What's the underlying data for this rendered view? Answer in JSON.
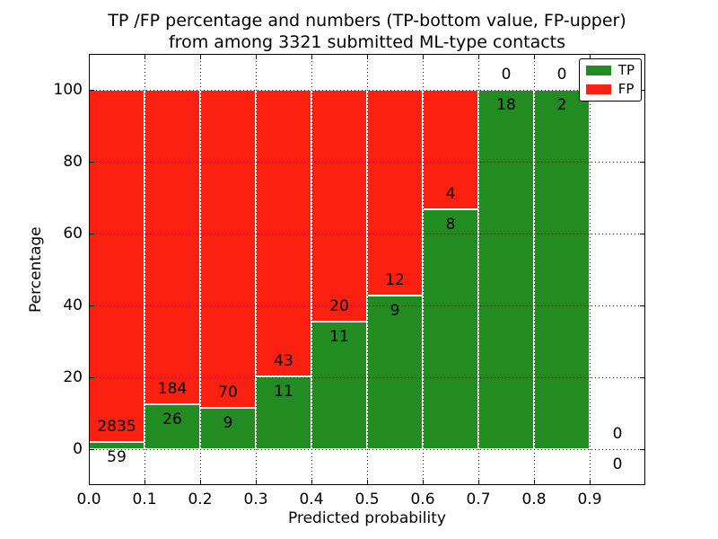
{
  "figure": {
    "title_line1": "TP /FP percentage and numbers (TP-bottom value, FP-upper)",
    "title_line2": "from among 3321 submitted ML-type contacts"
  },
  "chart_data": {
    "type": "bar",
    "stacked": true,
    "normalization": "each bin scaled so TP+FP = 100%; printed numbers are raw counts (TP-bottom value, FP-upper)",
    "title": "TP /FP percentage and numbers (TP-bottom value, FP-upper) from among 3321 submitted ML-type contacts",
    "xlabel": "Predicted probability",
    "ylabel": "Percentage",
    "total_submitted": 3321,
    "bin_width": 0.1,
    "bin_starts": [
      0.0,
      0.1,
      0.2,
      0.3,
      0.4,
      0.5,
      0.6,
      0.7,
      0.8,
      0.9
    ],
    "x_tick_labels": [
      "0.0",
      "0.1",
      "0.2",
      "0.3",
      "0.4",
      "0.5",
      "0.6",
      "0.7",
      "0.8",
      "0.9"
    ],
    "y_ticks": [
      0,
      20,
      40,
      60,
      80,
      100
    ],
    "xlim": [
      0.0,
      1.0
    ],
    "ylim": [
      -10,
      110
    ],
    "grid": "black dotted gridlines drawn above bars",
    "legend_position": "upper right",
    "series": [
      {
        "name": "TP",
        "color": "#228b22",
        "counts": [
          59,
          26,
          9,
          11,
          11,
          9,
          8,
          18,
          2,
          0
        ]
      },
      {
        "name": "FP",
        "color": "#fb2010",
        "counts": [
          2835,
          184,
          70,
          43,
          20,
          12,
          4,
          0,
          0,
          0
        ]
      }
    ],
    "tp_percent_by_bin": [
      2.04,
      12.38,
      11.39,
      20.37,
      35.48,
      42.86,
      66.67,
      100.0,
      100.0,
      null
    ],
    "bar_edge_color": "#ffffff"
  }
}
